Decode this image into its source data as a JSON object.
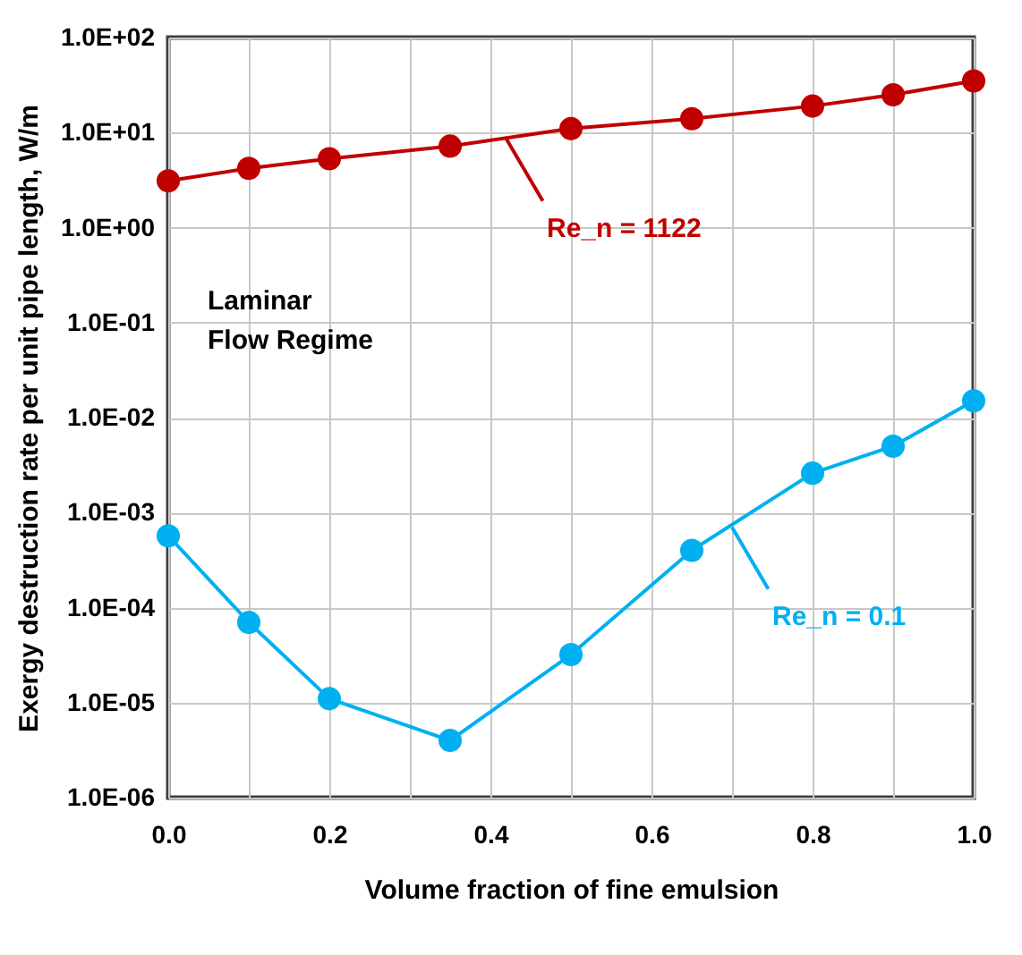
{
  "chart_data": {
    "type": "line",
    "xlabel": "Volume fraction of fine emulsion",
    "ylabel": "Exergy destruction rate per unit pipe length, W/m",
    "x": [
      0,
      0.1,
      0.2,
      0.35,
      0.5,
      0.65,
      0.8,
      0.9,
      1.0
    ],
    "series": [
      {
        "color": "#c00000",
        "values": [
          3.1,
          4.2,
          5.3,
          7.2,
          11,
          14,
          19,
          25,
          35
        ]
      },
      {
        "color": "#00b0f0",
        "values": [
          0.00057,
          7e-05,
          1.1e-05,
          4e-06,
          3.2e-05,
          0.0004,
          0.0026,
          0.005,
          0.015
        ]
      }
    ],
    "log": "y",
    "marker": "circle",
    "line_style": "solid",
    "grid": true,
    "xlim": [
      0,
      1
    ],
    "xticks": [
      {
        "value": 0,
        "label": "0.0"
      },
      {
        "value": 0.1,
        "label": null
      },
      0.2,
      {
        "value": 0.3,
        "label": null
      },
      0.4,
      {
        "value": 0.5,
        "label": null
      },
      0.6,
      {
        "value": 0.7,
        "label": null
      },
      0.8,
      {
        "value": 0.9,
        "label": null
      },
      {
        "value": 1,
        "label": "1.0"
      }
    ],
    "ylim": [
      1e-06,
      100
    ],
    "yticks": [
      {
        "value": 1e-06,
        "label": "1.0E-06"
      },
      {
        "value": 1e-05,
        "label": "1.0E-05"
      },
      {
        "value": 0.0001,
        "label": "1.0E-04"
      },
      {
        "value": 0.001,
        "label": "1.0E-03"
      },
      {
        "value": 0.01,
        "label": "1.0E-02"
      },
      {
        "value": 0.1,
        "label": "1.0E-01"
      },
      {
        "value": 1,
        "label": "1.0E+00"
      },
      {
        "value": 10,
        "label": "1.0E+01"
      },
      {
        "value": 100,
        "label": "1.0E+02"
      }
    ],
    "annotations": [
      {
        "text": "Re_n = 1122",
        "x": 0.42,
        "y": 8.5
      },
      {
        "text": "Re_n = 0.1",
        "x": 0.7,
        "y": 0.0007
      },
      "Laminar\nFlow Regime"
    ]
  }
}
